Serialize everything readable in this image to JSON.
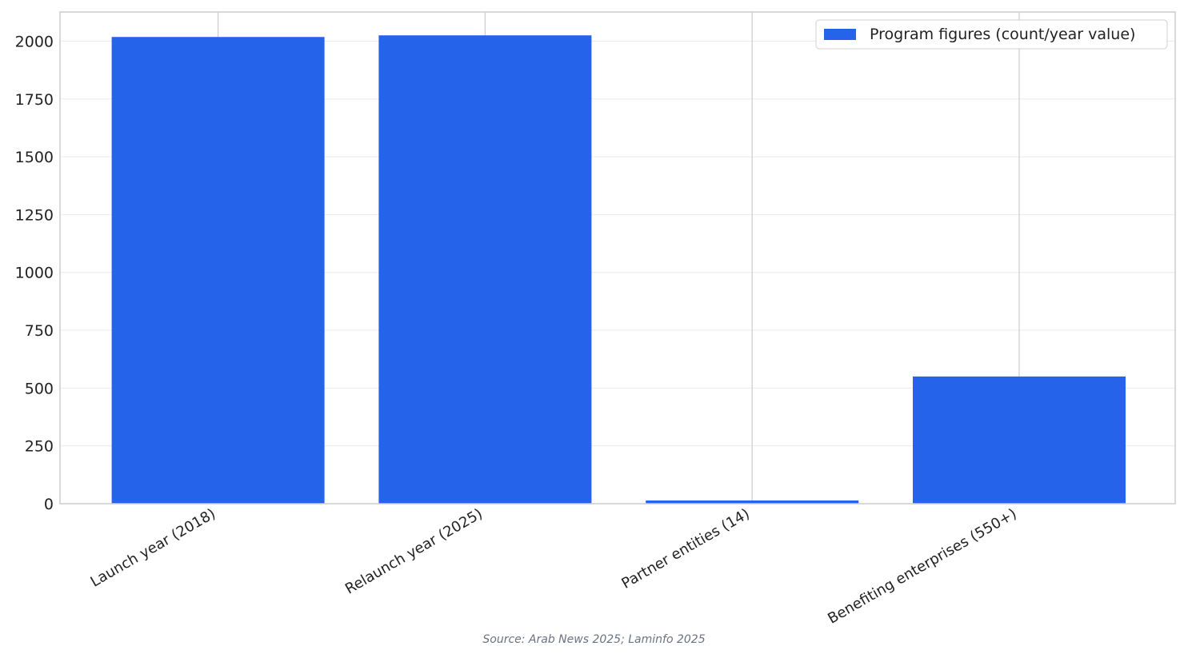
{
  "chart_data": {
    "type": "bar",
    "categories": [
      "Launch year (2018)",
      "Relaunch year (2025)",
      "Partner entities (14)",
      "Benefiting enterprises (550+)"
    ],
    "series": [
      {
        "name": "Program figures (count/year value)",
        "values": [
          2018,
          2025,
          14,
          550
        ]
      }
    ],
    "title": "",
    "xlabel": "",
    "ylabel": "",
    "ylim": [
      0,
      2126
    ],
    "yticks": [
      0,
      250,
      500,
      750,
      1000,
      1250,
      1500,
      1750,
      2000
    ],
    "grid": true,
    "legend_position": "top-right",
    "bar_color": "#2563eb",
    "source": "Source: Arab News 2025; Laminfo 2025"
  }
}
